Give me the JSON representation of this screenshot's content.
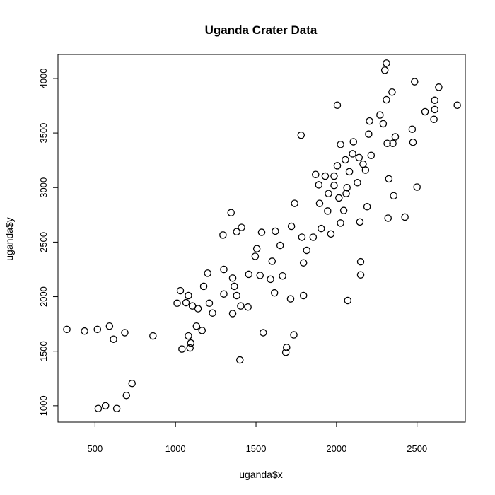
{
  "chart_data": {
    "type": "scatter",
    "title": "Uganda Crater Data",
    "xlabel": "uganda$x",
    "ylabel": "uganda$y",
    "xlim": [
      270,
      2800
    ],
    "ylim": [
      850,
      4220
    ],
    "x_ticks": [
      500,
      1000,
      1500,
      2000,
      2500
    ],
    "y_ticks": [
      1000,
      1500,
      2000,
      2500,
      3000,
      3500,
      4000
    ],
    "x_tick_labels": [
      "500",
      "1000",
      "1500",
      "2000",
      "2500"
    ],
    "y_tick_labels": [
      "1000",
      "1500",
      "2000",
      "2500",
      "3000",
      "3500",
      "4000"
    ],
    "grid": false,
    "points": [
      [
        325,
        1700
      ],
      [
        435,
        1685
      ],
      [
        515,
        1700
      ],
      [
        590,
        1730
      ],
      [
        615,
        1610
      ],
      [
        685,
        1670
      ],
      [
        860,
        1640
      ],
      [
        520,
        975
      ],
      [
        565,
        1000
      ],
      [
        635,
        975
      ],
      [
        695,
        1095
      ],
      [
        730,
        1205
      ],
      [
        1010,
        1940
      ],
      [
        1030,
        2055
      ],
      [
        1040,
        1520
      ],
      [
        1065,
        1945
      ],
      [
        1080,
        1640
      ],
      [
        1080,
        2010
      ],
      [
        1090,
        1530
      ],
      [
        1095,
        1575
      ],
      [
        1105,
        1915
      ],
      [
        1130,
        1730
      ],
      [
        1140,
        1890
      ],
      [
        1165,
        1690
      ],
      [
        1175,
        2095
      ],
      [
        1200,
        2215
      ],
      [
        1210,
        1940
      ],
      [
        1230,
        1850
      ],
      [
        1295,
        2565
      ],
      [
        1300,
        2250
      ],
      [
        1300,
        2025
      ],
      [
        1345,
        2770
      ],
      [
        1355,
        1845
      ],
      [
        1355,
        2170
      ],
      [
        1365,
        2095
      ],
      [
        1380,
        2595
      ],
      [
        1380,
        2010
      ],
      [
        1400,
        1420
      ],
      [
        1405,
        1915
      ],
      [
        1410,
        2635
      ],
      [
        1450,
        1905
      ],
      [
        1455,
        2205
      ],
      [
        1495,
        2370
      ],
      [
        1505,
        2440
      ],
      [
        1525,
        2195
      ],
      [
        1535,
        2590
      ],
      [
        1545,
        1670
      ],
      [
        1590,
        2160
      ],
      [
        1600,
        2325
      ],
      [
        1615,
        2035
      ],
      [
        1620,
        2600
      ],
      [
        1650,
        2470
      ],
      [
        1665,
        2190
      ],
      [
        1685,
        1490
      ],
      [
        1690,
        1535
      ],
      [
        1715,
        1980
      ],
      [
        1720,
        2645
      ],
      [
        1735,
        1650
      ],
      [
        1740,
        2855
      ],
      [
        1780,
        3480
      ],
      [
        1785,
        2545
      ],
      [
        1795,
        2310
      ],
      [
        1795,
        2010
      ],
      [
        1815,
        2425
      ],
      [
        1855,
        2545
      ],
      [
        1870,
        3120
      ],
      [
        1890,
        3025
      ],
      [
        1895,
        2855
      ],
      [
        1905,
        2625
      ],
      [
        1930,
        3105
      ],
      [
        1945,
        2785
      ],
      [
        1950,
        2945
      ],
      [
        1965,
        2575
      ],
      [
        1985,
        3020
      ],
      [
        1985,
        3105
      ],
      [
        2005,
        3755
      ],
      [
        2005,
        3200
      ],
      [
        2015,
        2905
      ],
      [
        2025,
        2675
      ],
      [
        2025,
        3395
      ],
      [
        2045,
        2790
      ],
      [
        2055,
        3255
      ],
      [
        2060,
        2945
      ],
      [
        2065,
        3000
      ],
      [
        2070,
        1965
      ],
      [
        2080,
        3145
      ],
      [
        2100,
        3310
      ],
      [
        2105,
        3420
      ],
      [
        2130,
        3045
      ],
      [
        2140,
        3275
      ],
      [
        2145,
        2685
      ],
      [
        2150,
        2320
      ],
      [
        2150,
        2200
      ],
      [
        2165,
        3215
      ],
      [
        2180,
        3160
      ],
      [
        2190,
        2825
      ],
      [
        2200,
        3490
      ],
      [
        2205,
        3610
      ],
      [
        2215,
        3295
      ],
      [
        2270,
        3665
      ],
      [
        2290,
        3585
      ],
      [
        2300,
        4075
      ],
      [
        2310,
        4140
      ],
      [
        2310,
        3805
      ],
      [
        2315,
        3405
      ],
      [
        2320,
        2720
      ],
      [
        2325,
        3080
      ],
      [
        2345,
        3875
      ],
      [
        2350,
        3405
      ],
      [
        2355,
        2925
      ],
      [
        2365,
        3465
      ],
      [
        2425,
        2730
      ],
      [
        2470,
        3535
      ],
      [
        2475,
        3415
      ],
      [
        2485,
        3970
      ],
      [
        2500,
        3005
      ],
      [
        2550,
        3695
      ],
      [
        2605,
        3625
      ],
      [
        2610,
        3800
      ],
      [
        2610,
        3715
      ],
      [
        2635,
        3920
      ],
      [
        2750,
        3755
      ]
    ]
  }
}
